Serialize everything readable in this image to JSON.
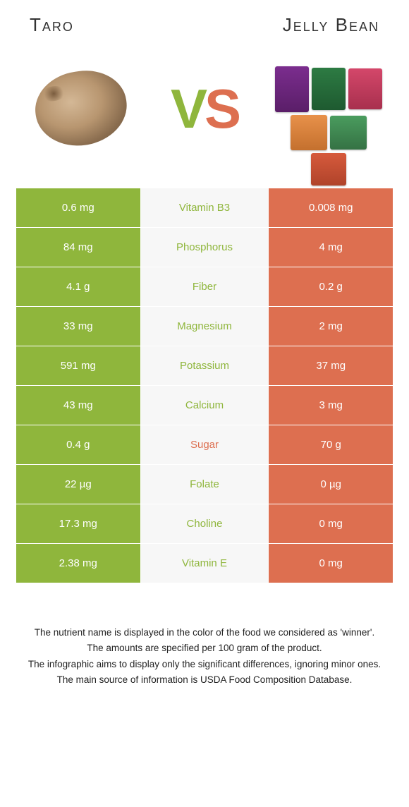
{
  "header": {
    "left": "Taro",
    "right": "Jelly Bean"
  },
  "vs": {
    "v": "V",
    "s": "S"
  },
  "colors": {
    "left_bg": "#8fb63c",
    "right_bg": "#dd6f50",
    "middle_bg": "#f7f7f7",
    "left_win_text": "#8fb63c",
    "right_win_text": "#dd6f50"
  },
  "rows": [
    {
      "left": "0.6 mg",
      "label": "Vitamin B3",
      "right": "0.008 mg",
      "winner": "left"
    },
    {
      "left": "84 mg",
      "label": "Phosphorus",
      "right": "4 mg",
      "winner": "left"
    },
    {
      "left": "4.1 g",
      "label": "Fiber",
      "right": "0.2 g",
      "winner": "left"
    },
    {
      "left": "33 mg",
      "label": "Magnesium",
      "right": "2 mg",
      "winner": "left"
    },
    {
      "left": "591 mg",
      "label": "Potassium",
      "right": "37 mg",
      "winner": "left"
    },
    {
      "left": "43 mg",
      "label": "Calcium",
      "right": "3 mg",
      "winner": "left"
    },
    {
      "left": "0.4 g",
      "label": "Sugar",
      "right": "70 g",
      "winner": "right"
    },
    {
      "left": "22 µg",
      "label": "Folate",
      "right": "0 µg",
      "winner": "left"
    },
    {
      "left": "17.3 mg",
      "label": "Choline",
      "right": "0 mg",
      "winner": "left"
    },
    {
      "left": "2.38 mg",
      "label": "Vitamin E",
      "right": "0 mg",
      "winner": "left"
    }
  ],
  "footer": {
    "l1": "The nutrient name is displayed in the color of the food we considered as 'winner'.",
    "l2": "The amounts are specified per 100 gram of the product.",
    "l3": "The infographic aims to display only the significant differences, ignoring minor ones.",
    "l4": "The main source of information is USDA Food Composition Database."
  }
}
